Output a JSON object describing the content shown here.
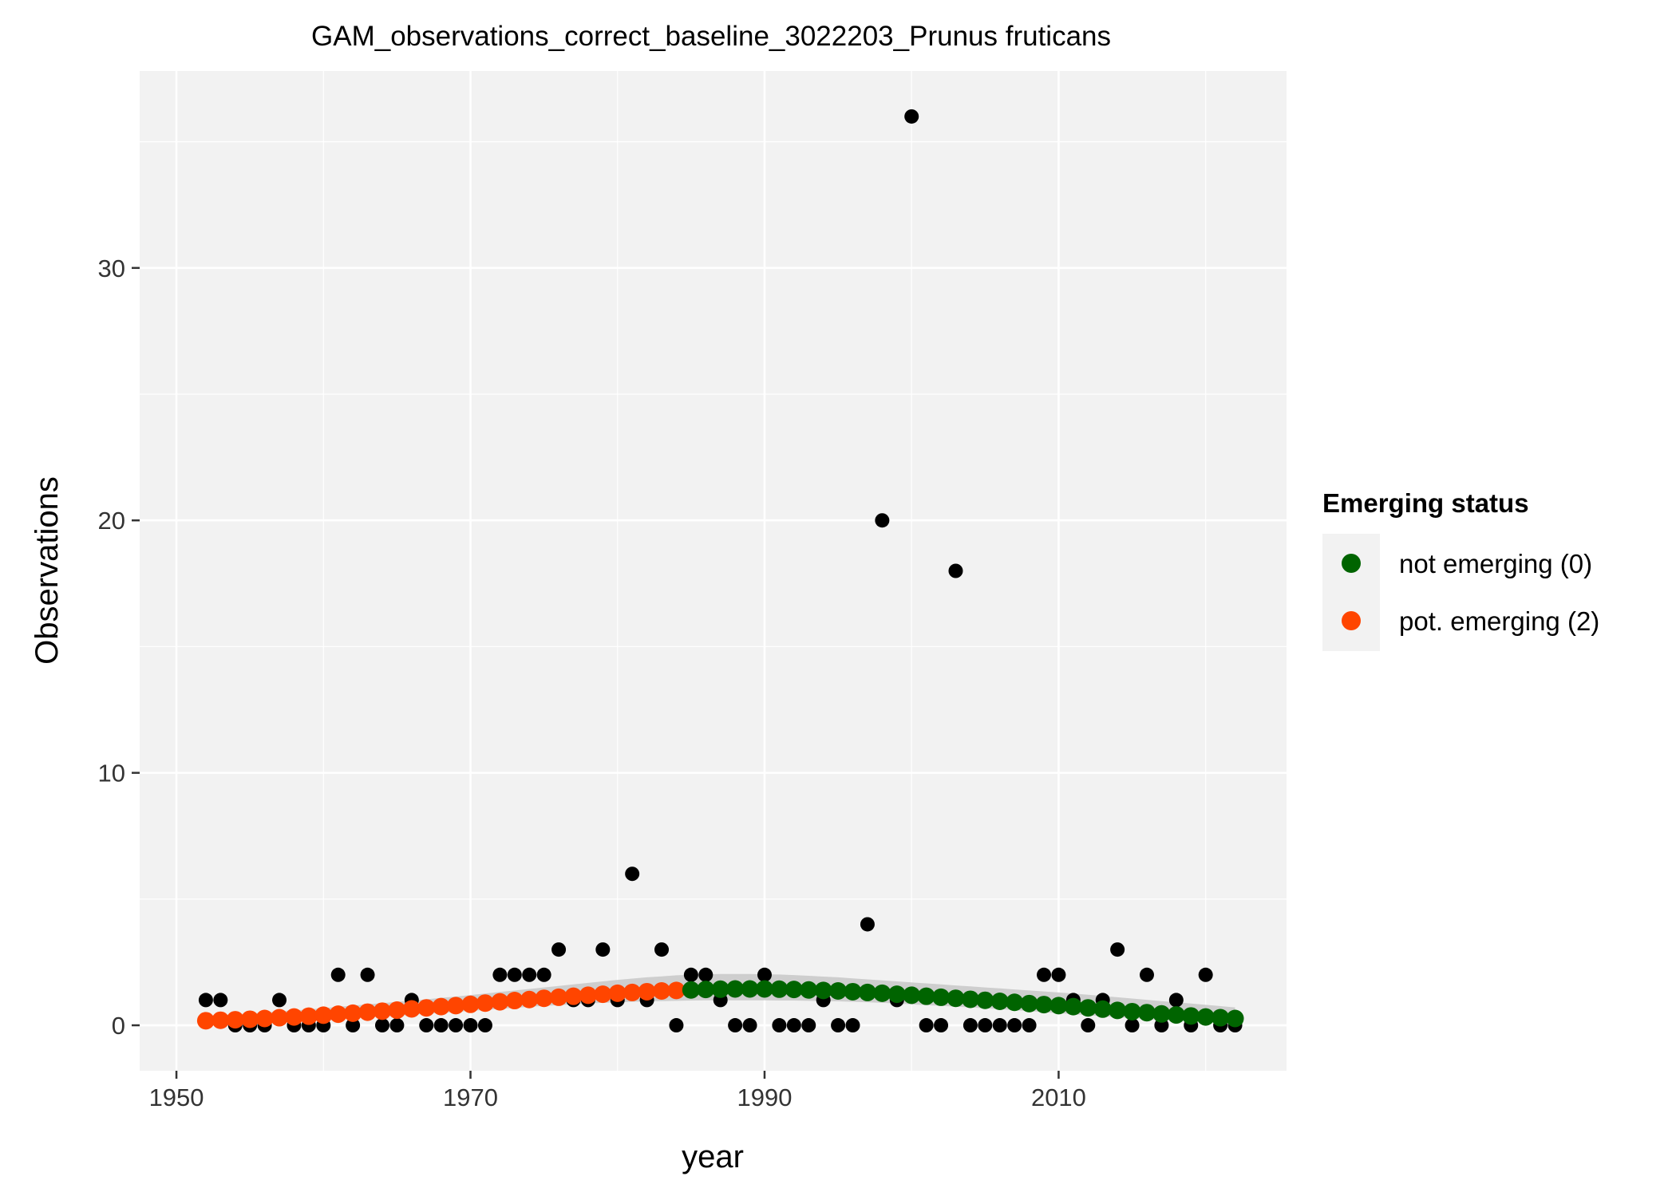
{
  "chart_data": {
    "type": "scatter",
    "title": "GAM_observations_correct_baseline_3022203_Prunus fruticans",
    "xlabel": "year",
    "ylabel": "Observations",
    "xlim": [
      1947.5,
      2025.5
    ],
    "ylim": [
      -1.8,
      37.8
    ],
    "x_ticks": [
      1950,
      1970,
      1990,
      2010
    ],
    "y_ticks": [
      0,
      10,
      20,
      30
    ],
    "x_tick_labels": [
      "1950",
      "1970",
      "1990",
      "2010"
    ],
    "y_tick_labels": [
      "0",
      "10",
      "20",
      "30"
    ],
    "grid": true,
    "legend": {
      "title": "Emerging status",
      "position": "right",
      "entries": [
        {
          "label": "not emerging (0)",
          "color": "#006400"
        },
        {
          "label": "pot. emerging (2)",
          "color": "#FF4500"
        }
      ]
    },
    "colors": {
      "panel": "#F2F2F2",
      "grid": "#FFFFFF",
      "observed": "#000000",
      "ribbon": "#C8C8C8",
      "not_emerging": "#006400",
      "pot_emerging": "#FF4500"
    },
    "observed": {
      "x": [
        1952,
        1953,
        1954,
        1955,
        1956,
        1957,
        1958,
        1959,
        1960,
        1961,
        1962,
        1963,
        1964,
        1965,
        1966,
        1967,
        1968,
        1969,
        1970,
        1971,
        1972,
        1973,
        1974,
        1975,
        1976,
        1977,
        1978,
        1979,
        1980,
        1981,
        1982,
        1983,
        1984,
        1985,
        1986,
        1987,
        1988,
        1989,
        1990,
        1991,
        1992,
        1993,
        1994,
        1995,
        1996,
        1997,
        1998,
        1999,
        2000,
        2001,
        2002,
        2003,
        2004,
        2005,
        2006,
        2007,
        2008,
        2009,
        2010,
        2011,
        2012,
        2013,
        2014,
        2015,
        2016,
        2017,
        2018,
        2019,
        2020,
        2021,
        2022
      ],
      "y": [
        1,
        1,
        0,
        0,
        0,
        1,
        0,
        0,
        0,
        2,
        0,
        2,
        0,
        0,
        1,
        0,
        0,
        0,
        0,
        0,
        2,
        2,
        2,
        2,
        3,
        1,
        1,
        3,
        1,
        6,
        1,
        3,
        0,
        2,
        2,
        1,
        0,
        0,
        2,
        0,
        0,
        0,
        1,
        0,
        0,
        4,
        20,
        1,
        36,
        0,
        0,
        18,
        0,
        0,
        0,
        0,
        0,
        2,
        2,
        1,
        0,
        1,
        3,
        0,
        2,
        0,
        1,
        0,
        2,
        0,
        0
      ]
    },
    "fitted": {
      "x": [
        1952,
        1953,
        1954,
        1955,
        1956,
        1957,
        1958,
        1959,
        1960,
        1961,
        1962,
        1963,
        1964,
        1965,
        1966,
        1967,
        1968,
        1969,
        1970,
        1971,
        1972,
        1973,
        1974,
        1975,
        1976,
        1977,
        1978,
        1979,
        1980,
        1981,
        1982,
        1983,
        1984,
        1985,
        1986,
        1987,
        1988,
        1989,
        1990,
        1991,
        1992,
        1993,
        1994,
        1995,
        1996,
        1997,
        1998,
        1999,
        2000,
        2001,
        2002,
        2003,
        2004,
        2005,
        2006,
        2007,
        2008,
        2009,
        2010,
        2011,
        2012,
        2013,
        2014,
        2015,
        2016,
        2017,
        2018,
        2019,
        2020,
        2021,
        2022
      ],
      "y": [
        0.18,
        0.2,
        0.22,
        0.24,
        0.27,
        0.3,
        0.33,
        0.36,
        0.4,
        0.44,
        0.48,
        0.52,
        0.56,
        0.6,
        0.65,
        0.69,
        0.74,
        0.78,
        0.83,
        0.88,
        0.93,
        0.98,
        1.02,
        1.07,
        1.11,
        1.15,
        1.19,
        1.23,
        1.27,
        1.3,
        1.33,
        1.36,
        1.38,
        1.4,
        1.42,
        1.43,
        1.44,
        1.44,
        1.44,
        1.43,
        1.42,
        1.4,
        1.38,
        1.36,
        1.33,
        1.3,
        1.27,
        1.23,
        1.19,
        1.15,
        1.11,
        1.07,
        1.03,
        0.99,
        0.95,
        0.91,
        0.86,
        0.82,
        0.78,
        0.74,
        0.69,
        0.64,
        0.59,
        0.54,
        0.5,
        0.45,
        0.41,
        0.37,
        0.33,
        0.3,
        0.27
      ],
      "lower": [
        0.08,
        0.09,
        0.1,
        0.11,
        0.13,
        0.15,
        0.17,
        0.19,
        0.22,
        0.25,
        0.28,
        0.31,
        0.34,
        0.38,
        0.42,
        0.45,
        0.49,
        0.53,
        0.57,
        0.61,
        0.65,
        0.69,
        0.73,
        0.77,
        0.8,
        0.83,
        0.86,
        0.89,
        0.91,
        0.93,
        0.95,
        0.96,
        0.97,
        0.98,
        0.99,
        0.99,
        0.99,
        0.99,
        0.99,
        0.98,
        0.98,
        0.97,
        0.96,
        0.95,
        0.93,
        0.91,
        0.89,
        0.86,
        0.83,
        0.8,
        0.77,
        0.74,
        0.71,
        0.67,
        0.64,
        0.6,
        0.56,
        0.52,
        0.48,
        0.44,
        0.4,
        0.36,
        0.32,
        0.28,
        0.25,
        0.21,
        0.18,
        0.15,
        0.13,
        0.11,
        0.09
      ],
      "upper": [
        0.38,
        0.41,
        0.44,
        0.47,
        0.51,
        0.55,
        0.59,
        0.63,
        0.68,
        0.73,
        0.78,
        0.83,
        0.88,
        0.93,
        0.98,
        1.03,
        1.09,
        1.14,
        1.2,
        1.26,
        1.32,
        1.38,
        1.44,
        1.5,
        1.56,
        1.62,
        1.68,
        1.74,
        1.8,
        1.85,
        1.9,
        1.94,
        1.98,
        2.0,
        2.02,
        2.03,
        2.03,
        2.03,
        2.02,
        2.01,
        1.99,
        1.96,
        1.93,
        1.9,
        1.86,
        1.82,
        1.78,
        1.74,
        1.7,
        1.66,
        1.62,
        1.58,
        1.54,
        1.5,
        1.46,
        1.42,
        1.38,
        1.34,
        1.3,
        1.26,
        1.21,
        1.16,
        1.11,
        1.06,
        1.01,
        0.96,
        0.91,
        0.86,
        0.81,
        0.76,
        0.71
      ],
      "status_pot_emerging_until": 1984
    }
  }
}
